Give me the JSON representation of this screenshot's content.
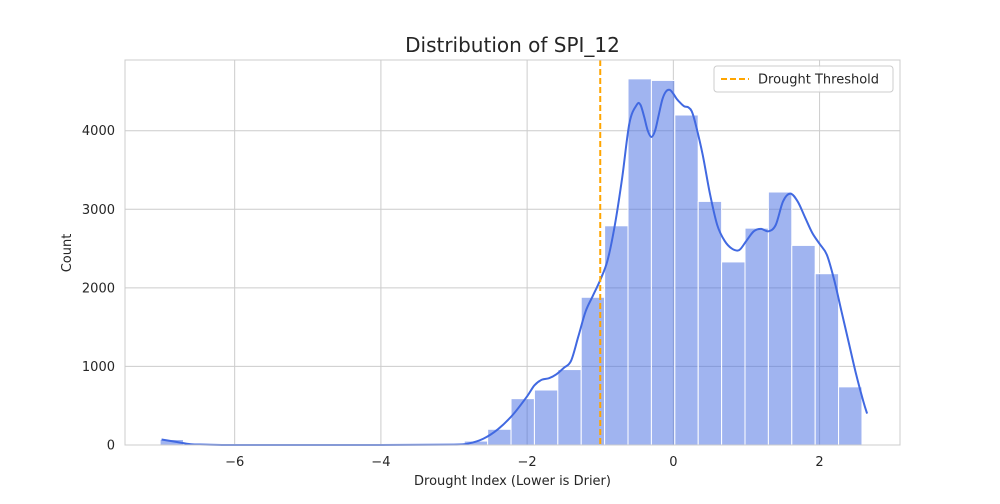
{
  "chart_data": {
    "type": "histogram",
    "title": "Distribution of SPI_12",
    "xlabel": "Drought Index (Lower is Drier)",
    "ylabel": "Count",
    "xlim": [
      -7.5,
      3.1
    ],
    "ylim": [
      0,
      4900
    ],
    "x_ticks": [
      -6,
      -4,
      -2,
      0,
      2
    ],
    "x_tick_labels": [
      "−6",
      "−4",
      "−2",
      "0",
      "2"
    ],
    "y_ticks": [
      0,
      1000,
      2000,
      3000,
      4000
    ],
    "y_tick_labels": [
      "0",
      "1000",
      "2000",
      "3000",
      "4000"
    ],
    "grid": true,
    "bin_edges": [
      -7.02,
      -6.7,
      -6.38,
      -6.06,
      -5.74,
      -5.42,
      -5.1,
      -4.78,
      -4.46,
      -4.14,
      -3.82,
      -3.5,
      -3.18,
      -2.86,
      -2.54,
      -2.22,
      -1.9,
      -1.58,
      -1.26,
      -0.94,
      -0.62,
      -0.3,
      0.02,
      0.34,
      0.66,
      0.98,
      1.3,
      1.62,
      1.94,
      2.26,
      2.58
    ],
    "bin_counts": [
      70,
      0,
      0,
      0,
      0,
      0,
      0,
      0,
      0,
      0,
      0,
      0,
      0,
      50,
      200,
      590,
      700,
      960,
      1880,
      2790,
      4660,
      4640,
      4200,
      3100,
      2330,
      2760,
      3220,
      2540,
      2180,
      740
    ],
    "kde_curve": {
      "x": [
        -7.0,
        -6.8,
        -6.6,
        -6.4,
        -6.0,
        -5.0,
        -4.0,
        -3.0,
        -2.8,
        -2.6,
        -2.4,
        -2.2,
        -2.0,
        -1.9,
        -1.8,
        -1.7,
        -1.6,
        -1.5,
        -1.4,
        -1.3,
        -1.2,
        -1.1,
        -1.0,
        -0.9,
        -0.8,
        -0.7,
        -0.6,
        -0.5,
        -0.45,
        -0.4,
        -0.35,
        -0.3,
        -0.25,
        -0.2,
        -0.15,
        -0.1,
        -0.05,
        0.0,
        0.05,
        0.1,
        0.15,
        0.2,
        0.25,
        0.3,
        0.4,
        0.5,
        0.6,
        0.7,
        0.8,
        0.9,
        1.0,
        1.1,
        1.2,
        1.3,
        1.4,
        1.5,
        1.6,
        1.7,
        1.8,
        1.9,
        2.0,
        2.1,
        2.2,
        2.3,
        2.4,
        2.5,
        2.6,
        2.65
      ],
      "y": [
        70,
        40,
        10,
        5,
        0,
        0,
        0,
        5,
        20,
        80,
        200,
        380,
        620,
        760,
        830,
        850,
        900,
        980,
        1070,
        1380,
        1700,
        1900,
        2100,
        2350,
        2800,
        3400,
        4100,
        4330,
        4330,
        4180,
        4000,
        3920,
        4000,
        4200,
        4400,
        4500,
        4520,
        4470,
        4400,
        4350,
        4310,
        4300,
        4250,
        4100,
        3700,
        3200,
        2800,
        2600,
        2500,
        2480,
        2600,
        2720,
        2750,
        2720,
        2800,
        3100,
        3200,
        3100,
        2900,
        2700,
        2560,
        2420,
        2100,
        1700,
        1300,
        900,
        550,
        400
      ]
    },
    "threshold": {
      "x": -1.0,
      "label": "Drought Threshold",
      "style": "dashed"
    },
    "legend_position": "top-right",
    "colors": {
      "bars": "#4169e1",
      "bar_fill_opacity": 0.5,
      "kde": "#4169e1",
      "threshold": "#ffa500",
      "grid": "#cccccc"
    }
  }
}
